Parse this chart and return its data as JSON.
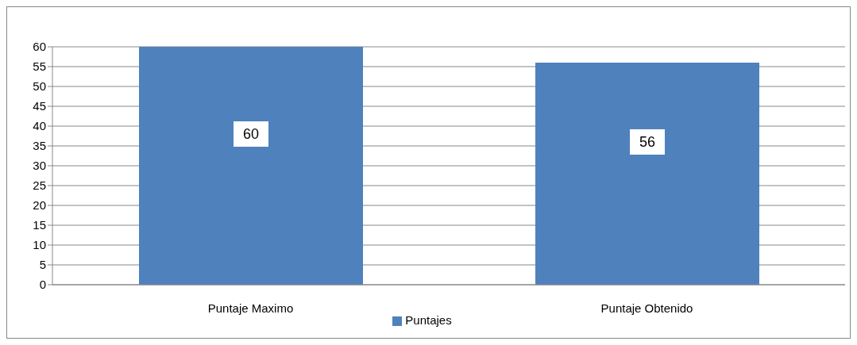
{
  "chart_data": {
    "type": "bar",
    "categories": [
      "Puntaje Maximo",
      "Puntaje Obtenido"
    ],
    "series": [
      {
        "name": "Puntajes",
        "color": "#4f81bd",
        "values": [
          60,
          56
        ]
      }
    ],
    "ylim": [
      0,
      60
    ],
    "yticks": [
      0,
      5,
      10,
      15,
      20,
      25,
      30,
      35,
      40,
      45,
      50,
      55,
      60
    ],
    "grid": "y",
    "legend": "bottom",
    "data_labels": true
  }
}
